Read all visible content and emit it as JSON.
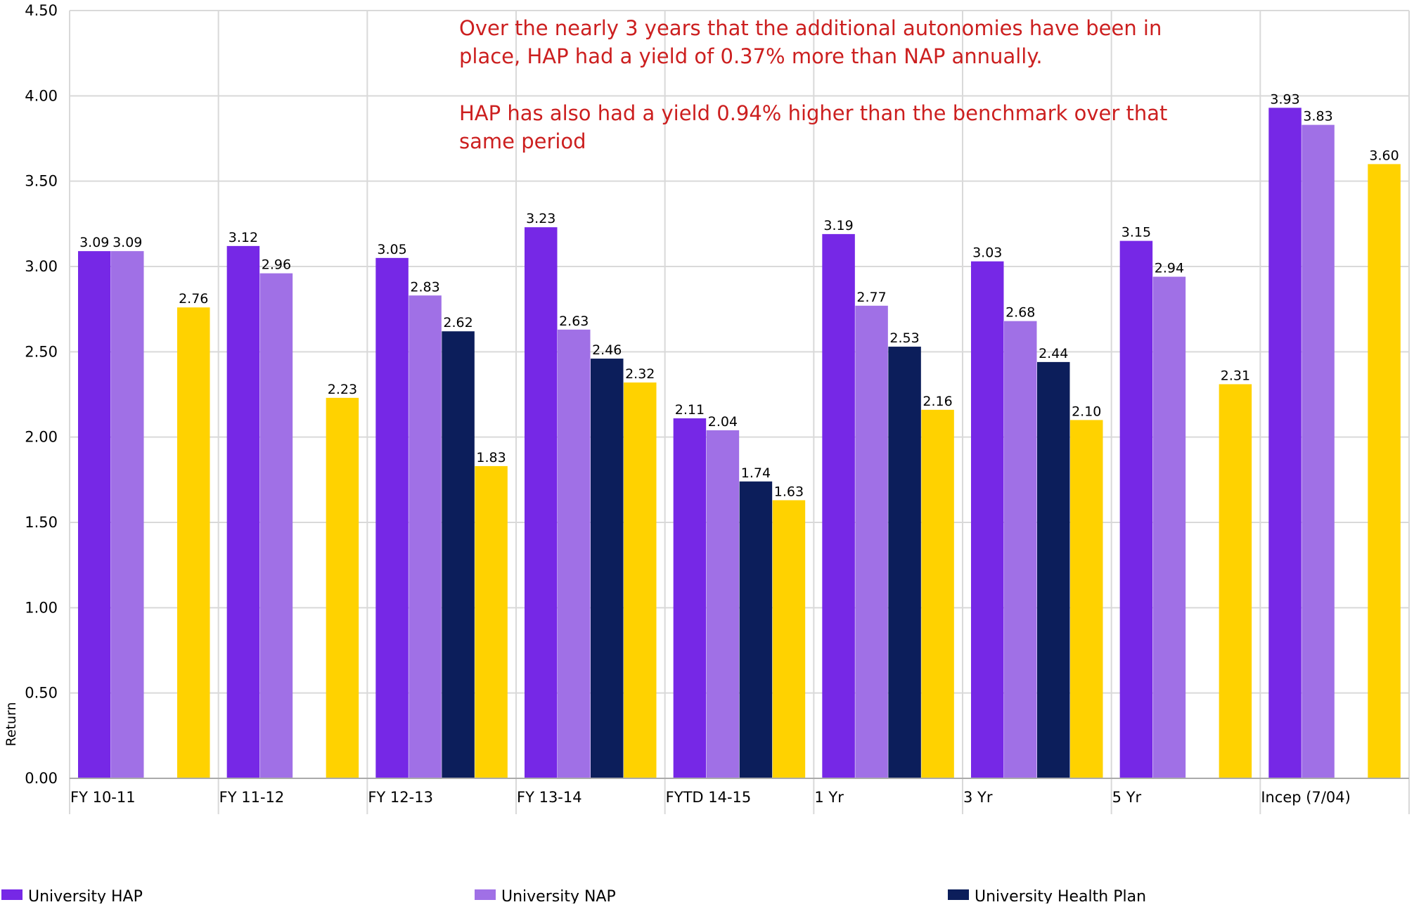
{
  "chart_data": {
    "type": "bar",
    "ylabel": "Return",
    "ylim": [
      0,
      4.5
    ],
    "yticks": [
      "0.00",
      "0.50",
      "1.00",
      "1.50",
      "2.00",
      "2.50",
      "3.00",
      "3.50",
      "4.00",
      "4.50"
    ],
    "grid": true,
    "legend_position": "bottom",
    "categories": [
      "FY 10-11",
      "FY 11-12",
      "FY 12-13",
      "FY 13-14",
      "FYTD 14-15",
      "1 Yr",
      "3 Yr",
      "5 Yr",
      "Incep (7/04)"
    ],
    "series": [
      {
        "name": "University HAP",
        "color": "#7628e6",
        "values": [
          3.09,
          3.12,
          3.05,
          3.23,
          2.11,
          3.19,
          3.03,
          3.15,
          3.93
        ],
        "labels": [
          "3.09",
          "3.12",
          "3.05",
          "3.23",
          "2.11",
          "3.19",
          "3.03",
          "3.15",
          "3.93"
        ]
      },
      {
        "name": "University NAP",
        "color": "#a070e6",
        "values": [
          3.09,
          2.96,
          2.83,
          2.63,
          2.04,
          2.77,
          2.68,
          2.94,
          3.83
        ],
        "labels": [
          "3.09",
          "2.96",
          "2.83",
          "2.63",
          "2.04",
          "2.77",
          "2.68",
          "2.94",
          "3.83"
        ]
      },
      {
        "name": "University Health Plan",
        "color": "#0c1e5b",
        "values": [
          null,
          null,
          2.62,
          2.46,
          1.74,
          2.53,
          2.44,
          null,
          null
        ],
        "labels": [
          "",
          "",
          "2.62",
          "2.46",
          "1.74",
          "2.53",
          "2.44",
          "",
          ""
        ]
      },
      {
        "name": "",
        "color": "#ffd200",
        "values": [
          2.76,
          2.23,
          1.83,
          2.32,
          1.63,
          2.16,
          2.1,
          2.31,
          3.6
        ],
        "labels": [
          "2.76",
          "2.23",
          "1.83",
          "2.32",
          "1.63",
          "2.16",
          "2.10",
          "2.31",
          "3.60"
        ]
      }
    ],
    "annotations": [
      "Over the nearly 3 years that the additional autonomies have been in",
      "place, HAP had a yield of 0.37% more than NAP annually.",
      "HAP has also had a yield 0.94% higher than the benchmark over that",
      "same period"
    ]
  },
  "colors": {
    "annotation": "#cc1f1f",
    "grid": "#d9d9d9",
    "axis": "#aaaaaa",
    "text": "#000000"
  }
}
